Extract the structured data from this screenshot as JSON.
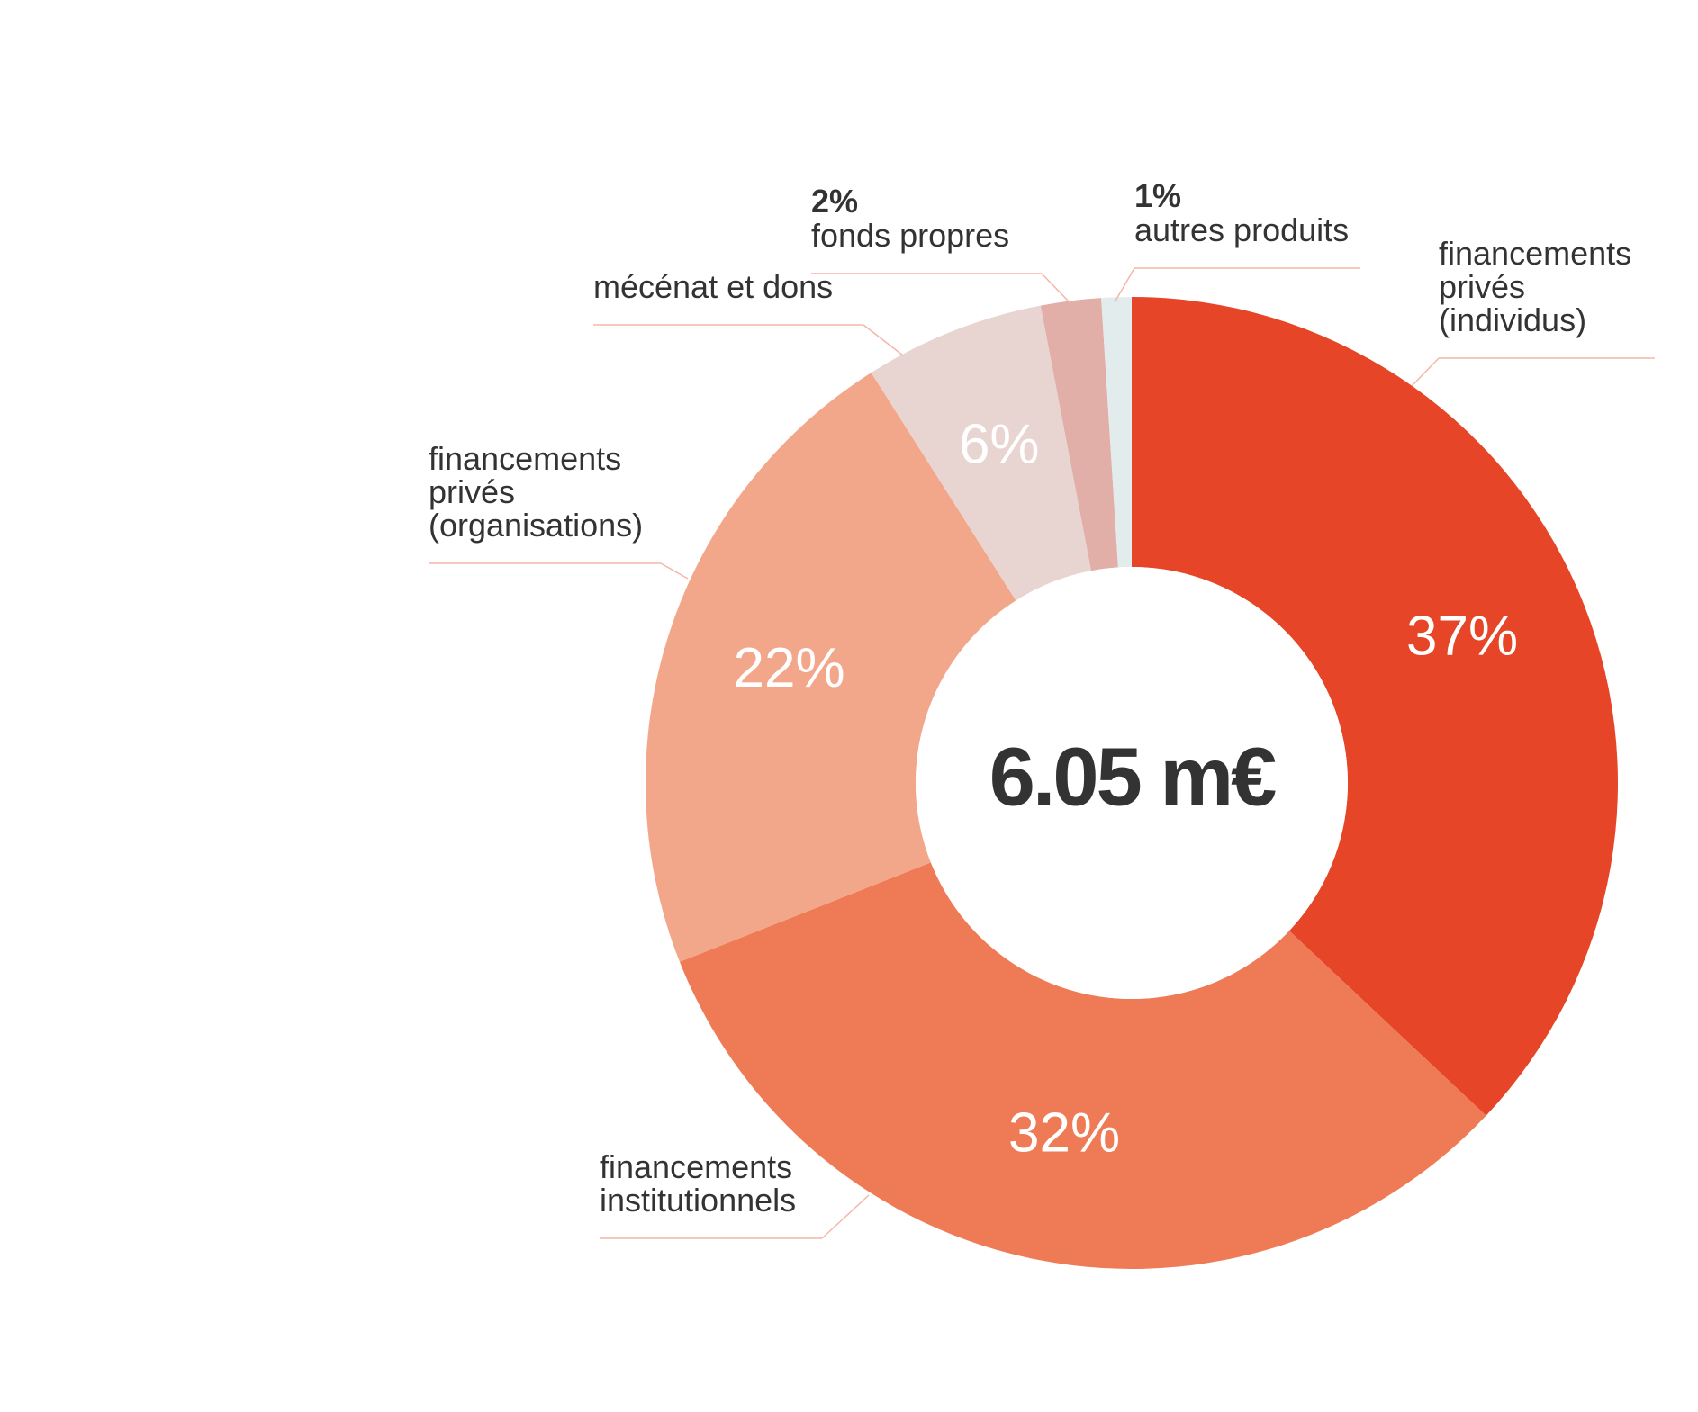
{
  "chart_data": {
    "type": "donut",
    "center_label": "6.05 m€",
    "categories": [
      "financements privés (individus)",
      "financements institutionnels",
      "financements privés (organisations)",
      "mécénat et dons",
      "fonds propres",
      "autres produits"
    ],
    "values": [
      37,
      32,
      22,
      6,
      2,
      1
    ],
    "value_labels": [
      "37%",
      "32%",
      "22%",
      "6%",
      "2%",
      "1%"
    ],
    "colors": [
      "#e64527",
      "#ee7b55",
      "#f3a78a",
      "#e8d5d1",
      "#e2aea8",
      "#e3eced"
    ]
  }
}
